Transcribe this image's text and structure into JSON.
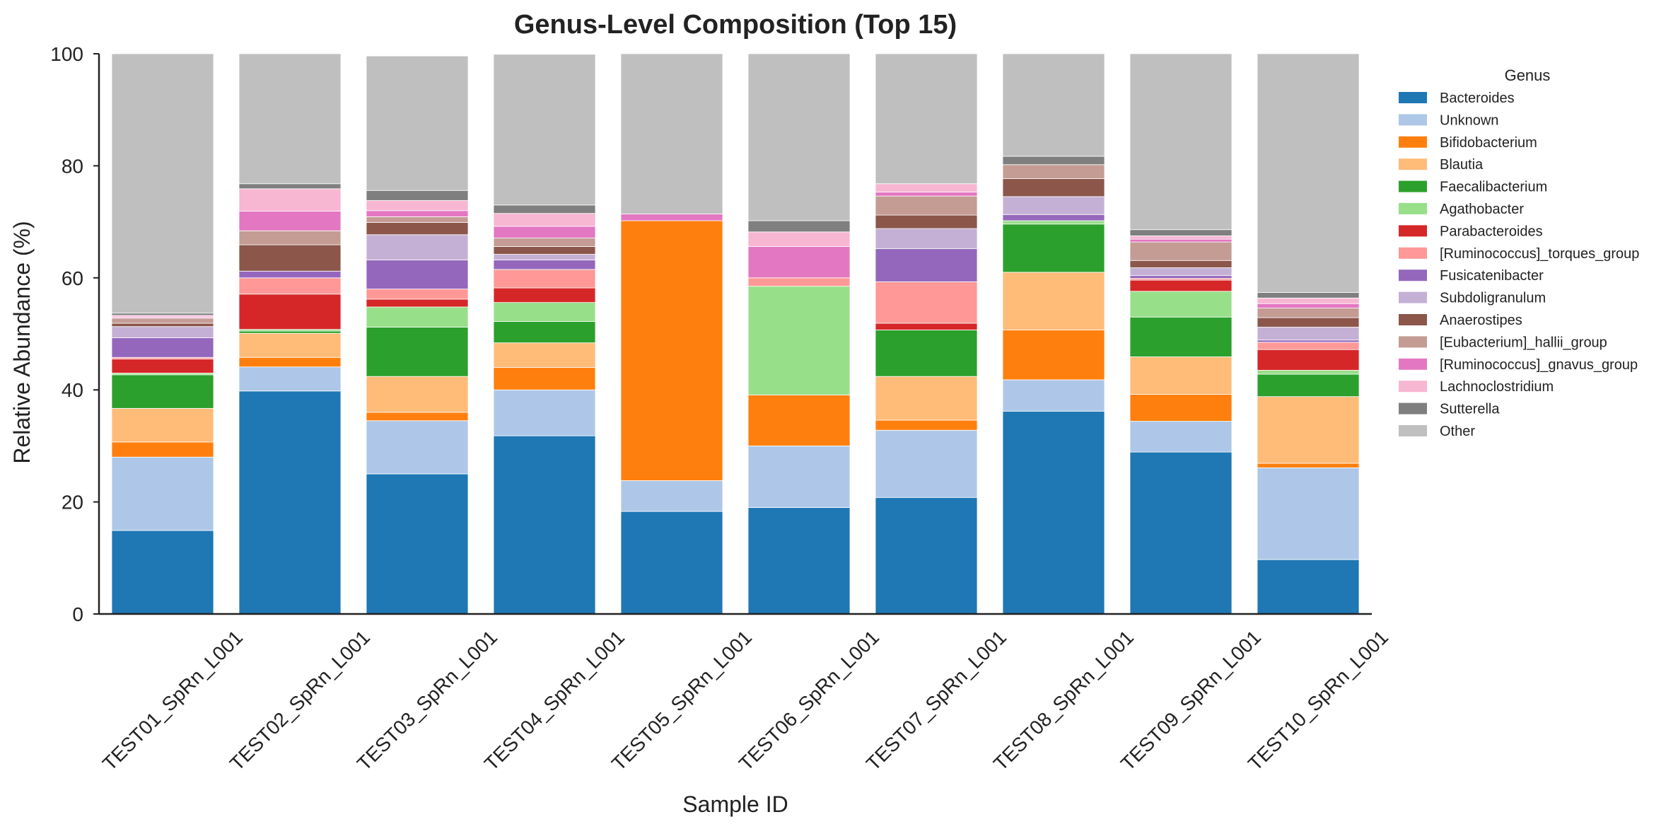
{
  "chart_data": {
    "type": "bar",
    "stacked": true,
    "title": "Genus-Level Composition (Top 15)",
    "xlabel": "Sample ID",
    "ylabel": "Relative Abundance (%)",
    "ylim": [
      0,
      100
    ],
    "yticks": [
      0,
      20,
      40,
      60,
      80,
      100
    ],
    "grid": false,
    "legend": {
      "title": "Genus",
      "placement": "outside-right"
    },
    "categories": [
      "TEST01_SpRn_L001",
      "TEST02_SpRn_L001",
      "TEST03_SpRn_L001",
      "TEST04_SpRn_L001",
      "TEST05_SpRn_L001",
      "TEST06_SpRn_L001",
      "TEST07_SpRn_L001",
      "TEST08_SpRn_L001",
      "TEST09_SpRn_L001",
      "TEST10_SpRn_L001"
    ],
    "series": [
      {
        "name": "Bacteroides",
        "color": "#1f77b4",
        "values": [
          14.9,
          39.8,
          25.0,
          31.8,
          18.3,
          19.0,
          20.8,
          36.2,
          28.9,
          9.7
        ]
      },
      {
        "name": "Unknown",
        "color": "#aec7e8",
        "values": [
          13.1,
          4.3,
          9.5,
          8.2,
          5.5,
          11.0,
          12.0,
          5.6,
          5.5,
          16.4
        ]
      },
      {
        "name": "Bifidobacterium",
        "color": "#ff7f0e",
        "values": [
          2.7,
          1.7,
          1.5,
          4.0,
          46.4,
          9.1,
          1.8,
          8.9,
          4.8,
          0.8
        ]
      },
      {
        "name": "Blautia",
        "color": "#ffbb78",
        "values": [
          6.0,
          4.3,
          6.4,
          4.4,
          0.0,
          0.0,
          7.8,
          10.3,
          6.7,
          11.9
        ]
      },
      {
        "name": "Faecalibacterium",
        "color": "#2ca02c",
        "values": [
          6.0,
          0.4,
          8.8,
          3.8,
          0.0,
          0.0,
          8.3,
          8.6,
          7.1,
          4.0
        ]
      },
      {
        "name": "Agathobacter",
        "color": "#98df8a",
        "values": [
          0.3,
          0.3,
          3.6,
          3.4,
          0.0,
          19.4,
          0.0,
          0.6,
          4.6,
          0.7
        ]
      },
      {
        "name": "Parabacteroides",
        "color": "#d62728",
        "values": [
          2.5,
          6.3,
          1.4,
          2.6,
          0.0,
          0.0,
          1.2,
          0.0,
          2.0,
          3.7
        ]
      },
      {
        "name": "[Ruminococcus]_torques_group",
        "color": "#ff9896",
        "values": [
          0.3,
          2.9,
          1.8,
          3.3,
          0.0,
          1.5,
          7.4,
          0.0,
          0.3,
          1.3
        ]
      },
      {
        "name": "Fusicatenibacter",
        "color": "#9467bd",
        "values": [
          3.5,
          1.2,
          5.2,
          1.7,
          0.0,
          0.0,
          5.9,
          1.1,
          0.5,
          0.4
        ]
      },
      {
        "name": "Subdoligranulum",
        "color": "#c5b0d5",
        "values": [
          2.0,
          0.0,
          4.5,
          1.0,
          0.0,
          0.0,
          3.6,
          3.2,
          1.4,
          2.3
        ]
      },
      {
        "name": "Anaerostipes",
        "color": "#8c564b",
        "values": [
          0.6,
          4.7,
          2.2,
          1.4,
          0.0,
          0.0,
          2.4,
          3.2,
          1.3,
          1.7
        ]
      },
      {
        "name": "[Eubacterium]_hallii_group",
        "color": "#c49c94",
        "values": [
          0.9,
          2.5,
          1.0,
          1.5,
          0.0,
          0.0,
          3.4,
          2.5,
          3.3,
          1.7
        ]
      },
      {
        "name": "[Ruminococcus]_gnavus_group",
        "color": "#e377c2",
        "values": [
          0.2,
          3.5,
          1.1,
          2.1,
          1.2,
          5.6,
          0.7,
          0.0,
          0.5,
          0.8
        ]
      },
      {
        "name": "Lachnoclostridium",
        "color": "#f7b6d2",
        "values": [
          0.3,
          4.0,
          1.8,
          2.3,
          0.0,
          2.6,
          1.5,
          0.0,
          0.6,
          1.0
        ]
      },
      {
        "name": "Sutterella",
        "color": "#7f7f7f",
        "values": [
          0.4,
          0.9,
          1.8,
          1.5,
          0.0,
          2.0,
          0.0,
          1.5,
          1.1,
          1.0
        ]
      },
      {
        "name": "Other",
        "color": "#bfbfbf",
        "values": [
          46.3,
          23.2,
          24.0,
          26.9,
          28.6,
          29.8,
          23.2,
          18.3,
          31.4,
          42.6
        ]
      }
    ]
  }
}
